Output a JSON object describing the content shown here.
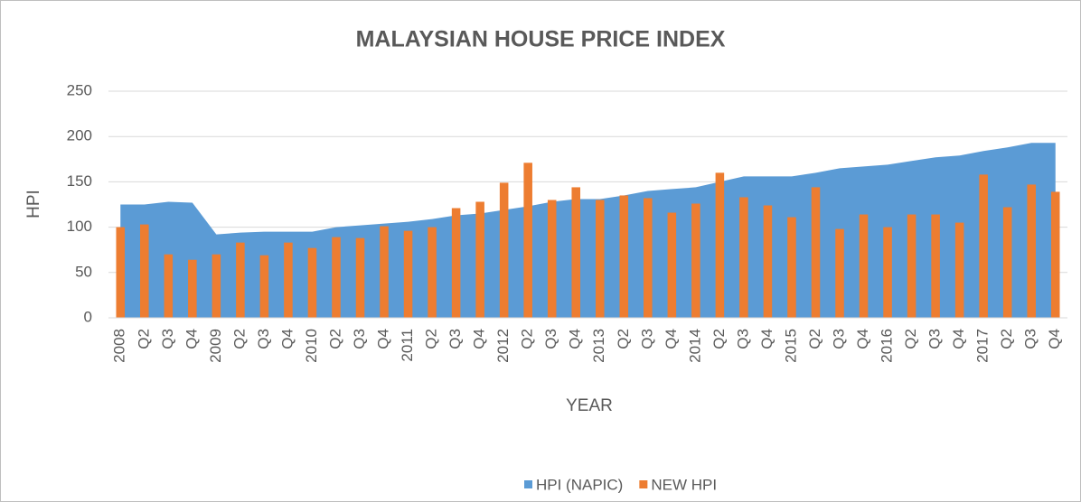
{
  "chart_data": {
    "type": "combo",
    "title": "MALAYSIAN HOUSE PRICE INDEX",
    "x_label": "YEAR",
    "y_label": "HPI",
    "categories": [
      "2008",
      "Q2",
      "Q3",
      "Q4",
      "2009",
      "Q2",
      "Q3",
      "Q4",
      "2010",
      "Q2",
      "Q3",
      "Q4",
      "2011",
      "Q2",
      "Q3",
      "Q4",
      "2012",
      "Q2",
      "Q3",
      "Q4",
      "2013",
      "Q2",
      "Q3",
      "Q4",
      "2014",
      "Q2",
      "Q3",
      "Q4",
      "2015",
      "Q2",
      "Q3",
      "Q4",
      "2016",
      "Q2",
      "Q3",
      "Q4",
      "2017",
      "Q2",
      "Q3",
      "Q4"
    ],
    "series": [
      {
        "name": "HPI (NAPIC)",
        "type": "area",
        "color": "#5b9bd5",
        "values": [
          125,
          125,
          128,
          127,
          92,
          94,
          95,
          95,
          95,
          100,
          102,
          104,
          106,
          109,
          113,
          115,
          119,
          123,
          128,
          131,
          131,
          135,
          140,
          142,
          144,
          150,
          156,
          156,
          156,
          160,
          165,
          167,
          169,
          173,
          177,
          179,
          184,
          188,
          193,
          193
        ]
      },
      {
        "name": "NEW HPI",
        "type": "bar",
        "color": "#ed7d31",
        "values": [
          100,
          103,
          70,
          64,
          70,
          83,
          69,
          83,
          77,
          89,
          88,
          101,
          96,
          100,
          121,
          128,
          149,
          171,
          130,
          144,
          130,
          135,
          132,
          116,
          126,
          160,
          133,
          124,
          111,
          144,
          98,
          114,
          100,
          114,
          114,
          105,
          158,
          122,
          147,
          139
        ]
      }
    ],
    "ylim": [
      0,
      250
    ],
    "yticks": [
      0,
      50,
      100,
      150,
      200,
      250
    ],
    "grid": true,
    "legend": "bottom"
  }
}
